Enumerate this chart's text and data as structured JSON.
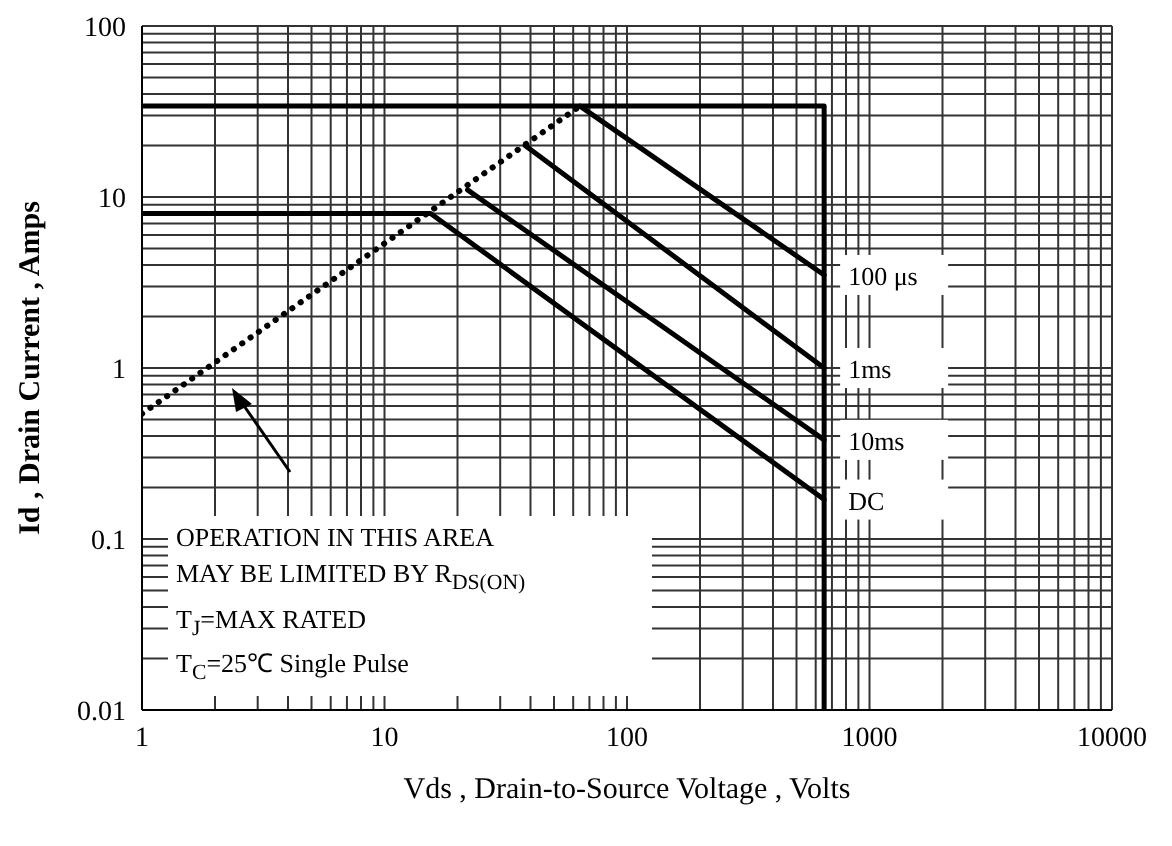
{
  "chart_data": {
    "type": "line",
    "xlabel": "Vds , Drain-to-Source Voltage , Volts",
    "ylabel": "Id , Drain Current , Amps",
    "log": "xy",
    "xlim": [
      1,
      10000
    ],
    "ylim": [
      0.01,
      100
    ],
    "xticks": [
      1,
      10,
      100,
      1000,
      10000
    ],
    "yticks": [
      0.01,
      0.1,
      1,
      10,
      100
    ],
    "grid": true,
    "series": [
      {
        "name": "100 μs",
        "color": "#000000",
        "x": [
          1,
          64,
          650
        ],
        "values": [
          34,
          34,
          3.5
        ]
      },
      {
        "name": "1ms",
        "color": "#000000",
        "x": [
          38,
          650
        ],
        "values": [
          20,
          1.0
        ]
      },
      {
        "name": "10ms",
        "color": "#000000",
        "x": [
          22,
          650
        ],
        "values": [
          11,
          0.38
        ]
      },
      {
        "name": "DC",
        "color": "#000000",
        "x": [
          1,
          15.5,
          650
        ],
        "values": [
          8,
          8,
          0.17
        ]
      },
      {
        "color": "#000000",
        "x": [
          64,
          650,
          650
        ],
        "values": [
          34,
          34,
          0.01
        ]
      },
      {
        "color": "#000000",
        "x": [
          1,
          64
        ],
        "values": [
          0.54,
          34
        ],
        "line_style": "dotted"
      }
    ],
    "annotations": [
      "OPERATION IN THIS AREA",
      "MAY BE LIMITED BY R$_{DS(ON)}$",
      "T$_{J}$=MAX RATED",
      "T$_{C}$=25℃  Single Pulse"
    ]
  }
}
